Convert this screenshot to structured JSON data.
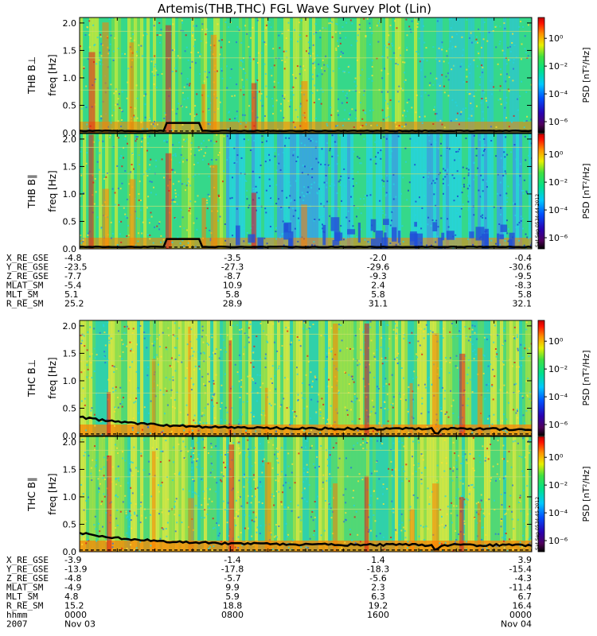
{
  "chart_data": {
    "type": "heatmap",
    "title": "Artemis(THB,THC) FGL Wave Survey Plot (Lin)",
    "colorbar": {
      "label": "PSD [nT²/Hz]",
      "ticks": [
        "10⁰",
        "10⁻²",
        "10⁻⁴",
        "10⁻⁶"
      ],
      "range": [
        -6.8,
        1.5
      ],
      "scale": "log"
    },
    "colors": {
      "background": "#36d88a",
      "low": "#2050d8",
      "high": "#ff8000",
      "peak": "#e01818",
      "noise": "#26d3e0",
      "grid": "#c8e070",
      "trace": "#000000"
    },
    "ylim": [
      0,
      2.1
    ],
    "yticks": [
      "0.0",
      "0.5",
      "1.0",
      "1.5",
      "2.0"
    ],
    "ylabel": "freq [Hz]",
    "x_time_hours": [
      0,
      24
    ],
    "panels": [
      {
        "probe_label": "THB B⊥",
        "stamp": ""
      },
      {
        "probe_label": "THB B∥",
        "stamp": "Sat Sep 0534:44 2012"
      },
      {
        "probe_label": "THC B⊥",
        "stamp": ""
      },
      {
        "probe_label": "THC B∥",
        "stamp": "Sat Sep 0534:45 2012"
      }
    ],
    "ephemeris": [
      {
        "names": [
          "X_RE_GSE",
          "Y_RE_GSE",
          "Z_RE_GSE",
          "MLAT_SM",
          "MLT_SM",
          "R_RE_SM"
        ],
        "columns": [
          [
            "-4.8",
            "-23.5",
            "-7.7",
            "-5.4",
            "5.1",
            "25.2"
          ],
          [
            "-3.5",
            "-27.3",
            "-8.7",
            "10.9",
            "5.8",
            "28.9"
          ],
          [
            "-2.0",
            "-29.6",
            "-9.3",
            "2.4",
            "5.8",
            "31.1"
          ],
          [
            "-0.4",
            "-30.6",
            "-9.5",
            "-8.3",
            "5.8",
            "32.1"
          ]
        ]
      },
      {
        "names": [
          "X_RE_GSE",
          "Y_RE_GSE",
          "Z_RE_GSE",
          "MLAT_SM",
          "MLT_SM",
          "R_RE_SM",
          "hhmm",
          "2007"
        ],
        "columns": [
          [
            "-3.9",
            "-13.9",
            "-4.8",
            "-4.9",
            "4.8",
            "15.2",
            "0000",
            "Nov 03"
          ],
          [
            "-1.4",
            "-17.8",
            "-5.7",
            "9.9",
            "5.9",
            "18.8",
            "0800",
            ""
          ],
          [
            "1.4",
            "-18.3",
            "-5.6",
            "2.3",
            "6.3",
            "19.2",
            "1600",
            ""
          ],
          [
            "3.9",
            "-15.4",
            "-4.3",
            "-11.4",
            "6.7",
            "16.4",
            "0000",
            "Nov 04"
          ]
        ]
      }
    ]
  }
}
